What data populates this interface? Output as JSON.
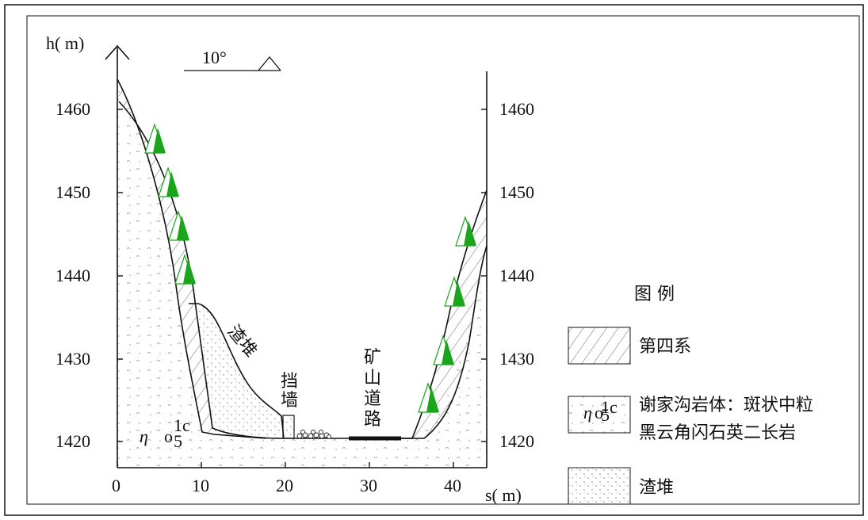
{
  "axes": {
    "y_label": "h( m)",
    "x_label": "s( m)",
    "y_ticks_left": [
      "1460",
      "1450",
      "1440",
      "1430",
      "1420"
    ],
    "y_ticks_right": [
      "1460",
      "1450",
      "1440",
      "1430",
      "1420"
    ],
    "x_ticks": [
      "0",
      "10",
      "20",
      "30",
      "40"
    ]
  },
  "scale_bar": {
    "label": "10°"
  },
  "annotations": {
    "slag_pile": "渣堆",
    "retaining_wall": [
      "挡",
      "墙"
    ],
    "mine_road": [
      "矿",
      "山",
      "道",
      "路"
    ],
    "rock_symbol": {
      "eta": "η",
      "base": "o",
      "sub": "5",
      "sup": "1c"
    }
  },
  "legend": {
    "title": "图 例",
    "items": [
      {
        "id": "quaternary",
        "label_lines": [
          "第四系"
        ]
      },
      {
        "id": "granite",
        "label_lines": [
          "谢家沟岩体：斑状中粒",
          "黑云角闪石英二长岩"
        ]
      },
      {
        "id": "slag",
        "label_lines": [
          "渣堆"
        ]
      }
    ]
  },
  "colors": {
    "tree": "#1aa51a",
    "line": "#111111"
  }
}
